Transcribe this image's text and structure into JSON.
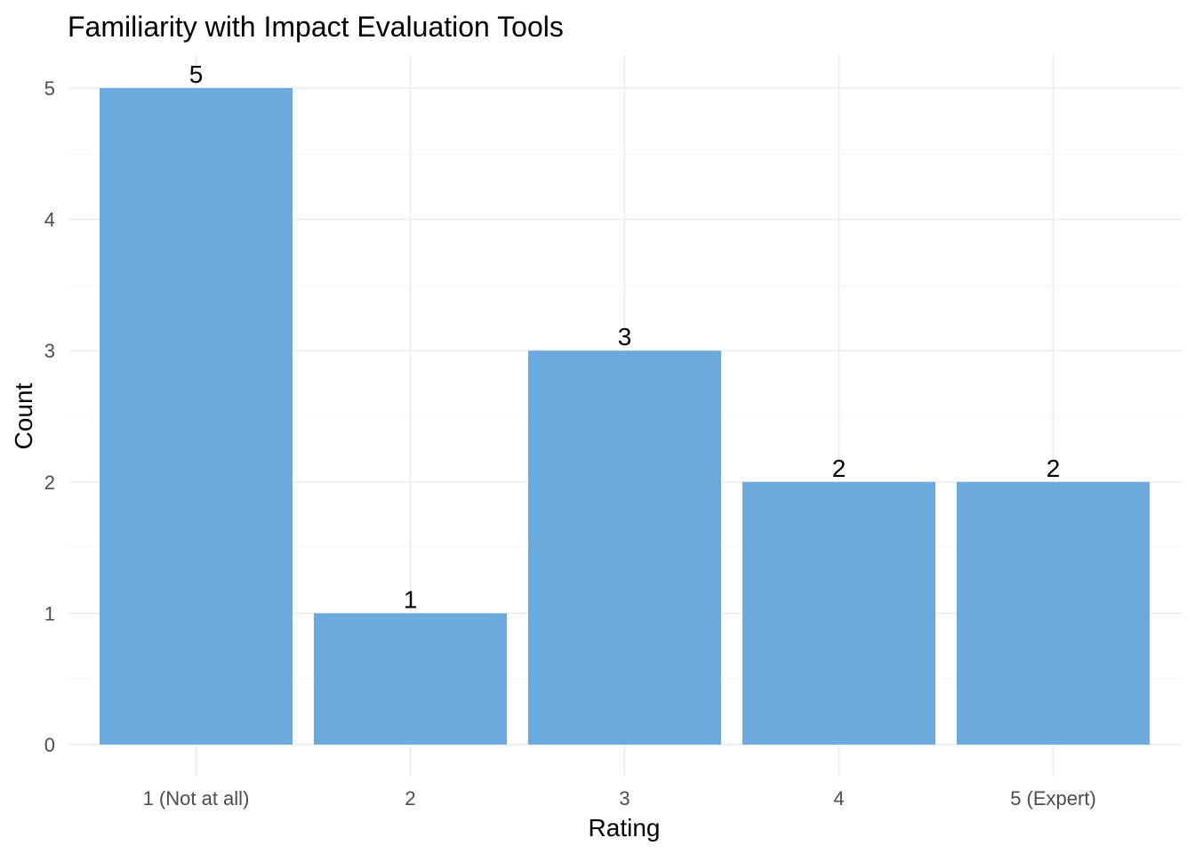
{
  "chart_data": {
    "type": "bar",
    "title": "Familiarity with Impact Evaluation Tools",
    "xlabel": "Rating",
    "ylabel": "Count",
    "categories": [
      "1 (Not at all)",
      "2",
      "3",
      "4",
      "5 (Expert)"
    ],
    "values": [
      5,
      1,
      3,
      2,
      2
    ],
    "ylim": [
      0,
      5
    ],
    "yticks": [
      "0",
      "1",
      "2",
      "3",
      "4",
      "5"
    ],
    "grid": true,
    "bar_color": "#6caadd"
  }
}
